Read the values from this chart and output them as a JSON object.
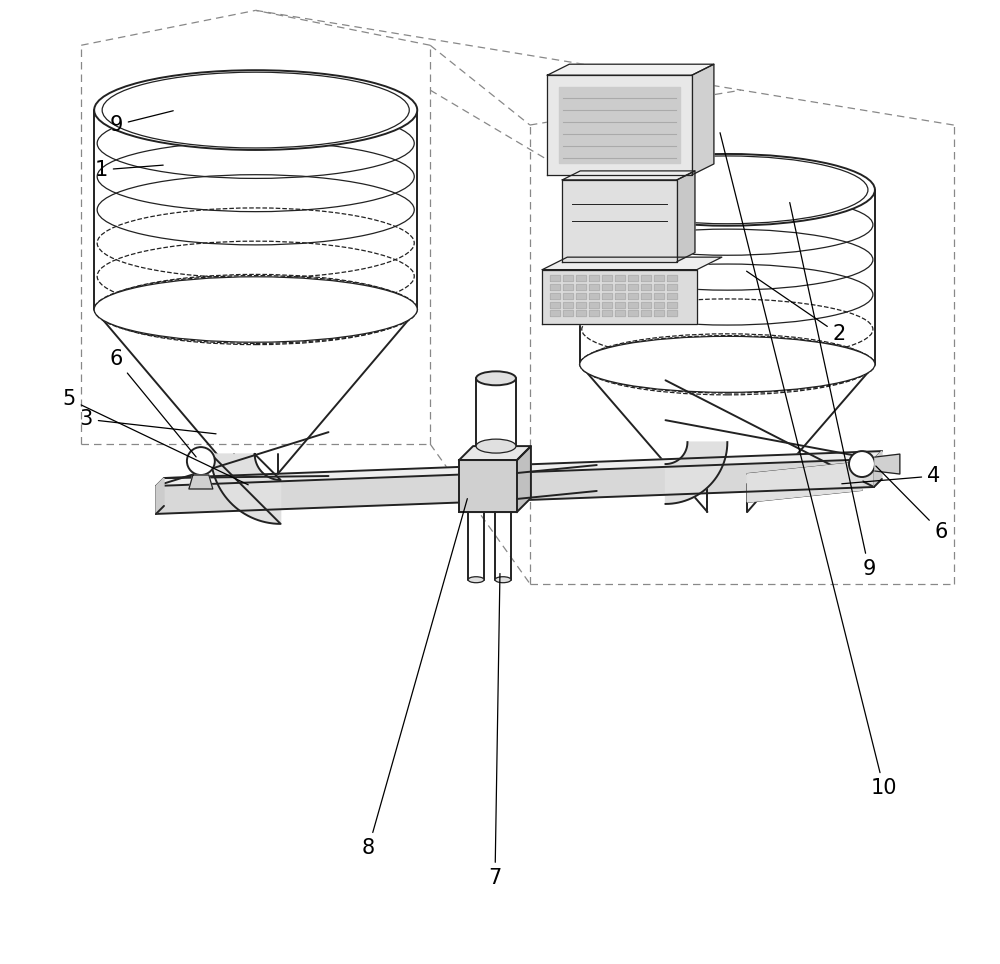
{
  "bg_color": "#ffffff",
  "line_color": "#222222",
  "dashed_color": "#888888",
  "label_color": "#000000",
  "fig_width": 10.0,
  "fig_height": 9.64,
  "lw_main": 1.4,
  "lw_thin": 0.9,
  "lw_dash": 0.9
}
